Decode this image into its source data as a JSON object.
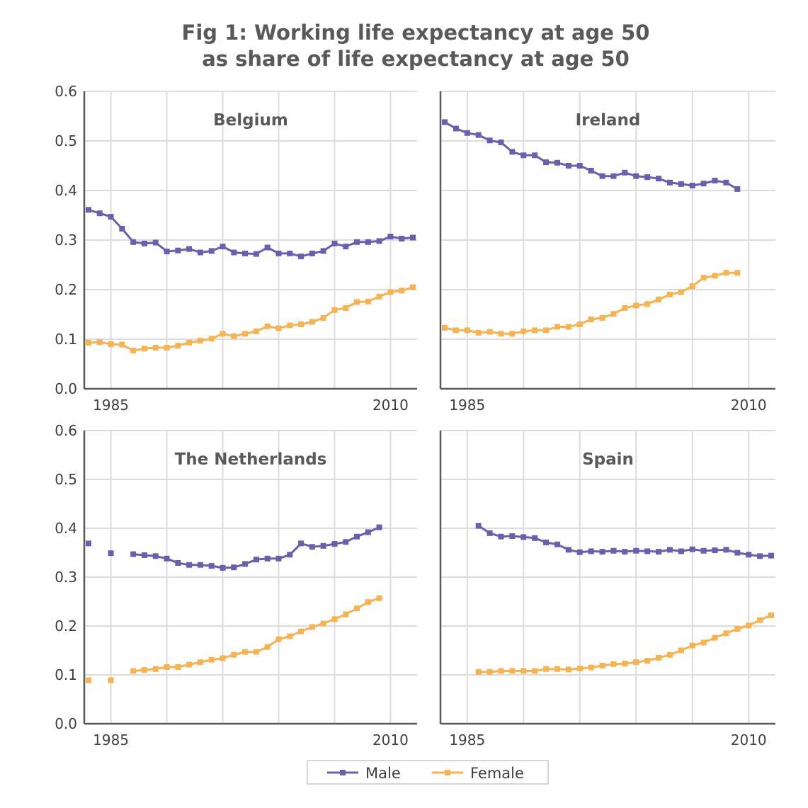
{
  "chart_data": {
    "type": "line",
    "title": [
      "Fig 1: Working life expectancy at age 50",
      "as share of life expectancy at age 50"
    ],
    "ylim": [
      0,
      0.6
    ],
    "yticks": [
      "0.0",
      "0.1",
      "0.2",
      "0.3",
      "0.4",
      "0.5",
      "0.6"
    ],
    "xlim": [
      1983,
      2012
    ],
    "xticks": [
      "1985",
      "2010"
    ],
    "grid": true,
    "legend_position": "bottom",
    "series_styles": [
      {
        "name": "Male",
        "color": "#6a5fae"
      },
      {
        "name": "Female",
        "color": "#f7b350"
      }
    ],
    "panels": [
      {
        "title": "Belgium",
        "x": [
          1983,
          1984,
          1985,
          1986,
          1987,
          1988,
          1989,
          1990,
          1991,
          1992,
          1993,
          1994,
          1995,
          1996,
          1997,
          1998,
          1999,
          2000,
          2001,
          2002,
          2003,
          2004,
          2005,
          2006,
          2007,
          2008,
          2009,
          2010,
          2011,
          2012
        ],
        "series": [
          {
            "name": "Male",
            "values": [
              0.361,
              0.354,
              0.347,
              0.323,
              0.296,
              0.293,
              0.295,
              0.277,
              0.279,
              0.282,
              0.275,
              0.278,
              0.287,
              0.275,
              0.273,
              0.272,
              0.285,
              0.273,
              0.273,
              0.267,
              0.273,
              0.278,
              0.293,
              0.287,
              0.296,
              0.296,
              0.298,
              0.307,
              0.303,
              0.305
            ]
          },
          {
            "name": "Female",
            "values": [
              0.093,
              0.094,
              0.09,
              0.089,
              0.077,
              0.081,
              0.083,
              0.083,
              0.087,
              0.093,
              0.097,
              0.101,
              0.111,
              0.106,
              0.111,
              0.116,
              0.126,
              0.122,
              0.128,
              0.13,
              0.135,
              0.143,
              0.159,
              0.163,
              0.175,
              0.176,
              0.186,
              0.195,
              0.198,
              0.205
            ]
          }
        ]
      },
      {
        "title": "Ireland",
        "x": [
          1983,
          1984,
          1985,
          1986,
          1987,
          1988,
          1989,
          1990,
          1991,
          1992,
          1993,
          1994,
          1995,
          1996,
          1997,
          1998,
          1999,
          2000,
          2001,
          2002,
          2003,
          2004,
          2005,
          2006,
          2007,
          2008,
          2009
        ],
        "series": [
          {
            "name": "Male",
            "values": [
              0.538,
              0.525,
              0.516,
              0.512,
              0.501,
              0.497,
              0.478,
              0.471,
              0.471,
              0.457,
              0.456,
              0.45,
              0.45,
              0.44,
              0.429,
              0.429,
              0.436,
              0.429,
              0.427,
              0.424,
              0.416,
              0.413,
              0.41,
              0.414,
              0.42,
              0.416,
              0.403
            ]
          },
          {
            "name": "Female",
            "values": [
              0.123,
              0.118,
              0.118,
              0.113,
              0.115,
              0.111,
              0.111,
              0.116,
              0.118,
              0.118,
              0.125,
              0.125,
              0.13,
              0.14,
              0.143,
              0.151,
              0.163,
              0.168,
              0.171,
              0.18,
              0.19,
              0.195,
              0.207,
              0.224,
              0.228,
              0.234,
              0.234
            ]
          }
        ]
      },
      {
        "title": "The Netherlands",
        "x": [
          1983,
          1984,
          1985,
          1986,
          1987,
          1988,
          1989,
          1990,
          1991,
          1992,
          1993,
          1994,
          1995,
          1996,
          1997,
          1998,
          1999,
          2000,
          2001,
          2002,
          2003,
          2004,
          2005,
          2006,
          2007,
          2008,
          2009
        ],
        "series": [
          {
            "name": "Male",
            "values": [
              0.369,
              null,
              0.349,
              null,
              0.347,
              0.345,
              0.343,
              0.338,
              0.329,
              0.325,
              0.325,
              0.323,
              0.319,
              0.32,
              0.327,
              0.336,
              0.338,
              0.338,
              0.346,
              0.369,
              0.362,
              0.364,
              0.368,
              0.372,
              0.383,
              0.392,
              0.402
            ]
          },
          {
            "name": "Female",
            "values": [
              0.089,
              null,
              0.089,
              null,
              0.108,
              0.11,
              0.112,
              0.116,
              0.116,
              0.121,
              0.126,
              0.131,
              0.134,
              0.141,
              0.147,
              0.147,
              0.157,
              0.173,
              0.179,
              0.189,
              0.198,
              0.205,
              0.214,
              0.224,
              0.236,
              0.249,
              0.257
            ]
          }
        ]
      },
      {
        "title": "Spain",
        "x": [
          1986,
          1987,
          1988,
          1989,
          1990,
          1991,
          1992,
          1993,
          1994,
          1995,
          1996,
          1997,
          1998,
          1999,
          2000,
          2001,
          2002,
          2003,
          2004,
          2005,
          2006,
          2007,
          2008,
          2009,
          2010,
          2011,
          2012
        ],
        "series": [
          {
            "name": "Male",
            "values": [
              0.405,
              0.39,
              0.383,
              0.384,
              0.382,
              0.38,
              0.371,
              0.367,
              0.356,
              0.351,
              0.353,
              0.352,
              0.354,
              0.352,
              0.354,
              0.353,
              0.352,
              0.356,
              0.353,
              0.357,
              0.354,
              0.355,
              0.356,
              0.35,
              0.346,
              0.343,
              0.344
            ]
          },
          {
            "name": "Female",
            "values": [
              0.106,
              0.106,
              0.108,
              0.108,
              0.108,
              0.108,
              0.112,
              0.112,
              0.111,
              0.113,
              0.115,
              0.119,
              0.122,
              0.123,
              0.126,
              0.129,
              0.135,
              0.141,
              0.15,
              0.16,
              0.166,
              0.176,
              0.185,
              0.194,
              0.201,
              0.212,
              0.222
            ]
          }
        ]
      }
    ]
  }
}
